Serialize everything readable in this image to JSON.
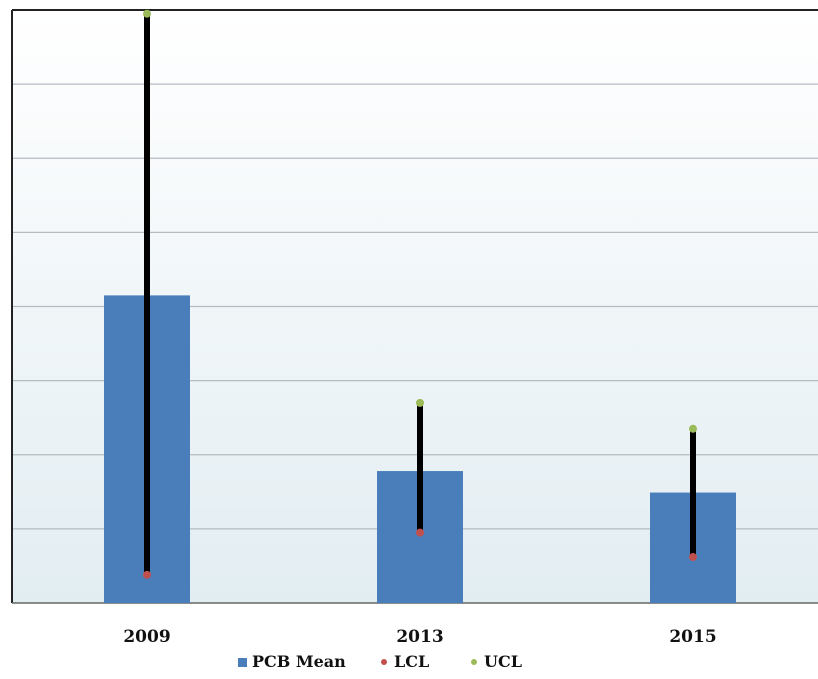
{
  "chart_data": {
    "type": "bar",
    "categories": [
      "2009",
      "2013",
      "2015"
    ],
    "series": [
      {
        "name": "PCB Mean",
        "values": [
          41.5,
          17.8,
          14.9
        ],
        "color": "#4a7ebb"
      },
      {
        "name": "LCL",
        "values": [
          3.8,
          9.5,
          6.2
        ],
        "color": "#c0504d"
      },
      {
        "name": "UCL",
        "values": [
          79.5,
          27,
          23.5
        ],
        "color": "#9bbb59"
      }
    ],
    "ylim": [
      0,
      80
    ],
    "y_gridlines": [
      10,
      20,
      30,
      40,
      50,
      60,
      70
    ],
    "grid": true,
    "error_bar_color": "#000000",
    "legend_position": "bottom",
    "title": "",
    "xlabel": "",
    "ylabel": ""
  }
}
